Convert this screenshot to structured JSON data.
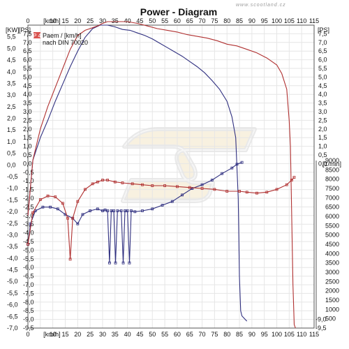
{
  "chart_data": {
    "type": "line",
    "title": "Power - Diagram",
    "watermark": "www.scootland.cz",
    "x_axis": {
      "unit_label": "[km/h]",
      "range": [
        0,
        115
      ],
      "ticks": [
        "0",
        "5",
        "10",
        "15",
        "20",
        "25",
        "30",
        "35",
        "40",
        "45",
        "50",
        "55",
        "60",
        "65",
        "70",
        "75",
        "80",
        "85",
        "90",
        "95",
        "100",
        "105",
        "110",
        "115"
      ]
    },
    "left_axis_outer": {
      "label": "[KW]",
      "range": [
        -7.0,
        6.0
      ],
      "ticks": [
        "6,0",
        "5,5",
        "5,0",
        "4,5",
        "4,0",
        "3,5",
        "3,0",
        "2,5",
        "2,0",
        "1,5",
        "1,0",
        "0,5",
        "0,0",
        "-0,5",
        "-1,0",
        "-1,5",
        "-2,0",
        "-2,5",
        "-3,0",
        "-3,5",
        "-4,0",
        "-4,5",
        "-5,0",
        "-5,5",
        "-6,0",
        "-6,5",
        "-7,0"
      ]
    },
    "left_axis_inner": {
      "label": "[PS]",
      "range": [
        -9.5,
        8.0
      ],
      "ticks": [
        "8,0",
        "7,5",
        "7,0",
        "6,5",
        "6,0",
        "5,5",
        "5,0",
        "4,5",
        "4,0",
        "3,5",
        "3,0",
        "2,5",
        "2,0",
        "1,5",
        "1,0",
        "0,5",
        "0,0",
        "-0,5",
        "-1,0",
        "-1,5",
        "-2,0",
        "-2,5",
        "-3,0",
        "-3,5",
        "-4,0",
        "-4,5",
        "-5,0",
        "-5,5",
        "-6,0",
        "-6,5",
        "-7,0",
        "-7,5",
        "-8,0",
        "-8,5",
        "-9,0",
        "-9,5"
      ]
    },
    "right_axis_power": {
      "label": "[PS]",
      "range": [
        -9.5,
        8.0
      ],
      "ticks": [
        "8,0",
        "7,5",
        "7,0",
        "6,5",
        "6,0",
        "5,5",
        "5,0",
        "4,5",
        "4,0",
        "3,5",
        "3,0",
        "2,5",
        "2,0",
        "1,5",
        "1,0",
        "0,5",
        "0,0",
        "-0,5",
        "-1,0",
        "-1,5",
        "-2,0",
        "-2,5",
        "-3,0",
        "-3,5",
        "-4,0",
        "-4,5",
        "-5,0",
        "-5,5",
        "-6,0",
        "-6,5",
        "-7,0",
        "-7,5",
        "-8,0",
        "-8,5",
        "-9,0",
        "-9,5"
      ]
    },
    "right_axis_rpm": {
      "label": "[1/min]",
      "range": [
        0,
        9000
      ],
      "ticks": [
        "9000",
        "8500",
        "8000",
        "7500",
        "7000",
        "6500",
        "6000",
        "5500",
        "5000",
        "4500",
        "4000",
        "3500",
        "3000",
        "2500",
        "2000",
        "1500",
        "1000",
        "500"
      ]
    },
    "legend": {
      "marker": "P 4",
      "line1": "Paem / [km/h]",
      "line2": "nach DIN 70020"
    },
    "series": [
      {
        "name": "",
        "color": "#303080",
        "kind": "power",
        "x": [
          0,
          2,
          5,
          8,
          11,
          14,
          17,
          20,
          23,
          26,
          29,
          32,
          35,
          38,
          41,
          44,
          47,
          50,
          53,
          56,
          59,
          62,
          65,
          68,
          71,
          74,
          77,
          80,
          82,
          83.5,
          84.5,
          85,
          85.5,
          86,
          88
        ],
        "y": [
          -3.0,
          0.2,
          1.5,
          2.5,
          3.6,
          4.6,
          5.6,
          6.5,
          7.3,
          7.8,
          8.0,
          8.0,
          7.9,
          7.75,
          7.7,
          7.55,
          7.4,
          7.2,
          6.95,
          6.7,
          6.45,
          6.2,
          5.9,
          5.6,
          5.25,
          4.8,
          4.3,
          3.6,
          2.7,
          1.5,
          -2.0,
          -6.5,
          -8.5,
          -8.8,
          -9.1
        ]
      },
      {
        "name": "",
        "color": "#b03030",
        "kind": "power",
        "x": [
          0,
          2,
          5,
          8,
          11,
          14,
          17,
          20,
          23,
          26,
          28,
          30,
          32,
          34,
          36,
          38,
          40,
          44,
          48,
          52,
          56,
          60,
          64,
          68,
          72,
          76,
          80,
          84,
          88,
          92,
          96,
          100,
          102,
          104,
          105,
          105.5,
          106,
          106.5,
          107,
          107.5
        ],
        "y": [
          -3.0,
          0.2,
          2.0,
          3.3,
          4.4,
          5.5,
          6.6,
          7.4,
          7.7,
          7.85,
          7.95,
          8.1,
          8.2,
          8.2,
          8.2,
          8.2,
          8.2,
          8.1,
          7.95,
          7.8,
          7.7,
          7.6,
          7.45,
          7.35,
          7.25,
          7.1,
          6.9,
          6.8,
          6.6,
          6.4,
          6.1,
          5.7,
          5.2,
          4.3,
          2.5,
          1.0,
          -3.0,
          -7.0,
          -9.3,
          -9.5
        ]
      },
      {
        "name": "",
        "color": "#303080",
        "kind": "rpm",
        "x": [
          0,
          1,
          3,
          6,
          9,
          12,
          15,
          18,
          20,
          22,
          25,
          28,
          30,
          31,
          32,
          32.8,
          33.5,
          34.5,
          35.2,
          36,
          37.5,
          38.3,
          39,
          40,
          40.8,
          41.5,
          43,
          46,
          50,
          54,
          58,
          62,
          66,
          70,
          74,
          78,
          82,
          84,
          86
        ],
        "y": [
          4500,
          5600,
          6300,
          6500,
          6500,
          6400,
          6100,
          5900,
          5600,
          6100,
          6300,
          6400,
          6300,
          6350,
          6300,
          3500,
          6300,
          6300,
          3500,
          6300,
          6300,
          3500,
          6300,
          6300,
          3500,
          6300,
          6250,
          6300,
          6400,
          6600,
          6800,
          7150,
          7500,
          7700,
          7950,
          8300,
          8600,
          8800,
          8900
        ]
      },
      {
        "name": "",
        "color": "#b03030",
        "kind": "rpm",
        "x": [
          0,
          2,
          5,
          8,
          11,
          14,
          16,
          17,
          18,
          20,
          23,
          26,
          28,
          30,
          32,
          35,
          38,
          42,
          46,
          50,
          55,
          60,
          65,
          70,
          75,
          80,
          85,
          88,
          92,
          96,
          100,
          104,
          106,
          107
        ],
        "y": [
          4500,
          6200,
          6900,
          7100,
          7050,
          6700,
          5900,
          3700,
          5900,
          6800,
          7450,
          7750,
          7850,
          7950,
          7950,
          7850,
          7800,
          7750,
          7700,
          7650,
          7650,
          7600,
          7550,
          7500,
          7450,
          7350,
          7350,
          7300,
          7250,
          7300,
          7450,
          7700,
          7950,
          8100
        ]
      }
    ]
  }
}
